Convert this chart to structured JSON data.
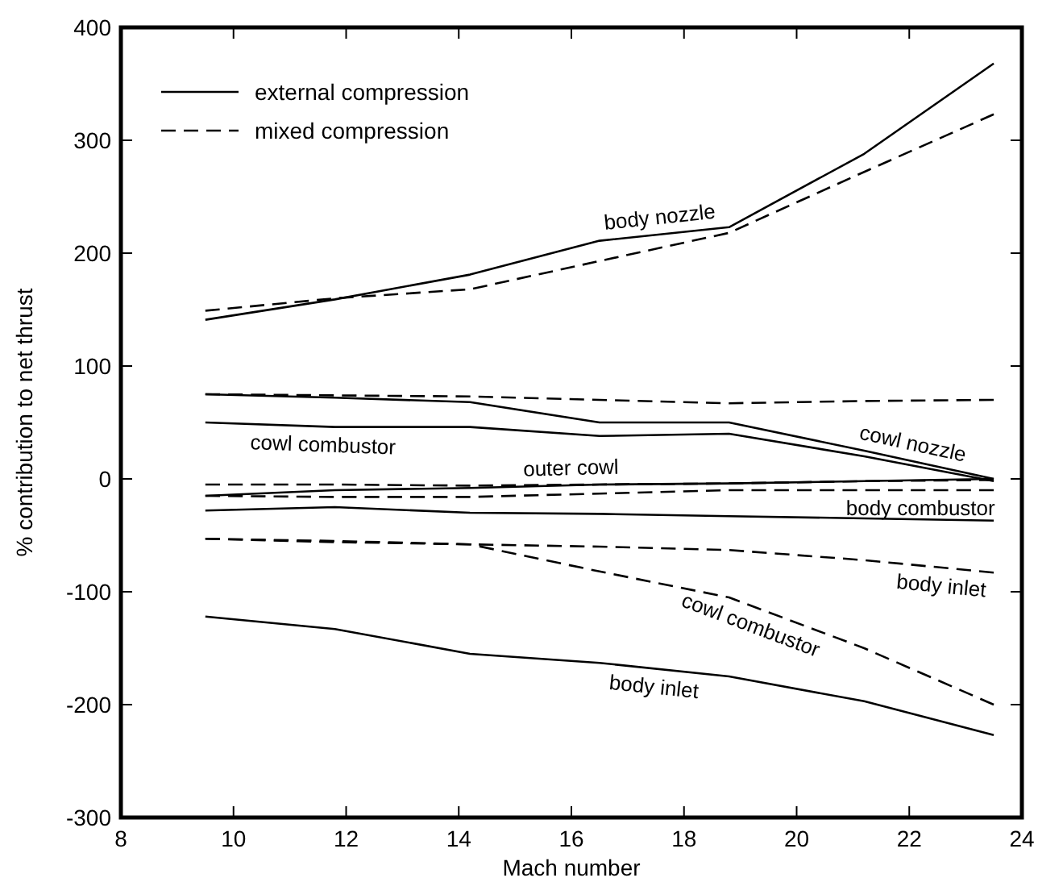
{
  "chart_data": {
    "type": "line",
    "xlabel": "Mach number",
    "ylabel": "% contribution to net thrust",
    "xlim": [
      8,
      24
    ],
    "ylim": [
      -300,
      400
    ],
    "xticks": [
      8,
      10,
      12,
      14,
      16,
      18,
      20,
      22,
      24
    ],
    "yticks": [
      -300,
      -200,
      -100,
      0,
      100,
      200,
      300,
      400
    ],
    "grid": false,
    "legend": "top left",
    "marker": "none",
    "x": [
      9.5,
      11.8,
      14.2,
      16.5,
      18.8,
      21.2,
      23.5
    ],
    "series": [
      {
        "name": "external compression",
        "color": "#000000",
        "line_style": "solid",
        "values": [
          141,
          159,
          181,
          211,
          223,
          288,
          368
        ]
      },
      {
        "name": "mixed compression",
        "color": "#000000",
        "line_style": "dashed",
        "values": [
          149,
          160,
          168,
          193,
          218,
          272,
          323
        ]
      },
      {
        "color": "#000000",
        "line_style": "solid",
        "values": [
          75,
          72,
          68,
          50,
          50,
          25,
          0
        ]
      },
      {
        "color": "#000000",
        "line_style": "dashed",
        "values": [
          75,
          74,
          73,
          70,
          67,
          69,
          70
        ]
      },
      {
        "color": "#000000",
        "line_style": "solid",
        "values": [
          50,
          46,
          46,
          38,
          40,
          20,
          -2
        ]
      },
      {
        "color": "#000000",
        "line_style": "dashed",
        "values": [
          -5,
          -5,
          -6,
          -5,
          -4,
          -2,
          -1
        ]
      },
      {
        "color": "#000000",
        "line_style": "solid",
        "values": [
          -15,
          -10,
          -8,
          -5,
          -4,
          -2,
          0
        ]
      },
      {
        "color": "#000000",
        "line_style": "dashed",
        "values": [
          -15,
          -16,
          -16,
          -13,
          -10,
          -10,
          -10
        ]
      },
      {
        "color": "#000000",
        "line_style": "solid",
        "values": [
          -28,
          -25,
          -30,
          -31,
          -33,
          -35,
          -37
        ]
      },
      {
        "color": "#000000",
        "line_style": "dashed",
        "values": [
          -53,
          -56,
          -58,
          -60,
          -63,
          -72,
          -83
        ]
      },
      {
        "color": "#000000",
        "line_style": "dashed",
        "values": [
          -53,
          -55,
          -58,
          -82,
          -105,
          -150,
          -200
        ]
      },
      {
        "color": "#000000",
        "line_style": "solid",
        "values": [
          -122,
          -133,
          -155,
          -163,
          -175,
          -197,
          -227
        ]
      }
    ],
    "annotations": [
      {
        "text": "body nozzle",
        "x": 17.6,
        "y": 216.7
      },
      {
        "text": "cowl combustor",
        "x": 11.6,
        "y": 46.3
      },
      {
        "text": "cowl nozzle",
        "x": 22,
        "y": 16.3
      },
      {
        "text": "outer cowl",
        "x": 16,
        "y": -5.7
      },
      {
        "text": "body combustor",
        "x": 22.2,
        "y": -10
      },
      {
        "text": "body inlet",
        "x": 22.6,
        "y": -78.7
      },
      {
        "text": "cowl combustor",
        "x": 19.3,
        "y": -114.4
      },
      {
        "text": "body inlet",
        "x": 17.5,
        "y": -168.2
      }
    ]
  }
}
